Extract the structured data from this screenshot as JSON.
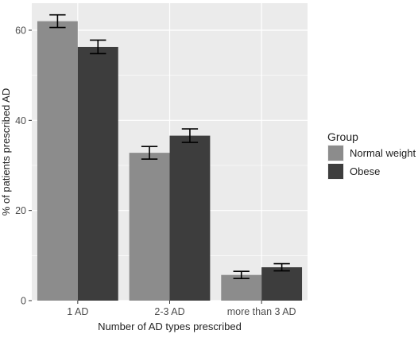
{
  "chart_data": {
    "type": "bar",
    "title": "",
    "xlabel": "Number of AD types prescribed",
    "ylabel": "% of patients prescribed AD",
    "categories": [
      "1 AD",
      "2-3 AD",
      "more than 3 AD"
    ],
    "ylim": [
      0,
      66
    ],
    "yticks": [
      0,
      20,
      40,
      60
    ],
    "grid": true,
    "legend": {
      "title": "Group",
      "placement": "right"
    },
    "series": [
      {
        "name": "Normal weight",
        "color": "#8c8c8c",
        "values": [
          62.0,
          32.8,
          5.7
        ],
        "error": [
          1.4,
          1.4,
          0.8
        ]
      },
      {
        "name": "Obese",
        "color": "#3d3d3d",
        "values": [
          56.3,
          36.6,
          7.4
        ],
        "error": [
          1.5,
          1.5,
          0.8
        ]
      }
    ],
    "panel_background": "#ebebeb",
    "grid_color": "#ffffff"
  }
}
